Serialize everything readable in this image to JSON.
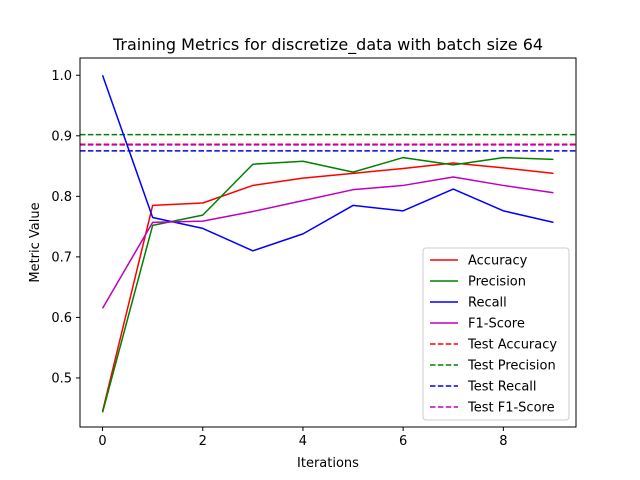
{
  "chart_data": {
    "type": "line",
    "title": "Training Metrics for discretize_data with batch size 64",
    "xlabel": "Iterations",
    "ylabel": "Metric Value",
    "x": [
      0,
      1,
      2,
      3,
      4,
      5,
      6,
      7,
      8,
      9
    ],
    "xlim": [
      -0.45,
      9.45
    ],
    "ylim": [
      0.419,
      1.0285
    ],
    "xticks": [
      0,
      2,
      4,
      6,
      8
    ],
    "yticks": [
      0.5,
      0.6,
      0.7,
      0.8,
      0.9,
      1.0
    ],
    "ytick_labels": [
      "0.5",
      "0.6",
      "0.7",
      "0.8",
      "0.9",
      "1.0"
    ],
    "grid": false,
    "legend_position": "lower-right",
    "series": [
      {
        "name": "Accuracy",
        "color": "#ff0000",
        "style": "solid",
        "values": [
          0.445,
          0.785,
          0.789,
          0.818,
          0.83,
          0.838,
          0.846,
          0.855,
          0.847,
          0.838
        ]
      },
      {
        "name": "Precision",
        "color": "#008000",
        "style": "solid",
        "values": [
          0.443,
          0.752,
          0.769,
          0.853,
          0.858,
          0.84,
          0.864,
          0.852,
          0.864,
          0.861
        ]
      },
      {
        "name": "Recall",
        "color": "#0000ff",
        "style": "solid",
        "values": [
          1.0,
          0.765,
          0.747,
          0.71,
          0.738,
          0.785,
          0.776,
          0.812,
          0.776,
          0.757
        ]
      },
      {
        "name": "F1-Score",
        "color": "#bf00bf",
        "style": "solid",
        "values": [
          0.615,
          0.757,
          0.759,
          0.775,
          0.793,
          0.811,
          0.818,
          0.832,
          0.818,
          0.806
        ]
      }
    ],
    "hlines": [
      {
        "name": "Test Accuracy",
        "color": "#ff0000",
        "style": "dashed",
        "value": 0.886
      },
      {
        "name": "Test Precision",
        "color": "#008000",
        "style": "dashed",
        "value": 0.902
      },
      {
        "name": "Test Recall",
        "color": "#0000ff",
        "style": "dashed",
        "value": 0.875
      },
      {
        "name": "Test F1-Score",
        "color": "#bf00bf",
        "style": "dashed",
        "value": 0.885
      }
    ]
  }
}
